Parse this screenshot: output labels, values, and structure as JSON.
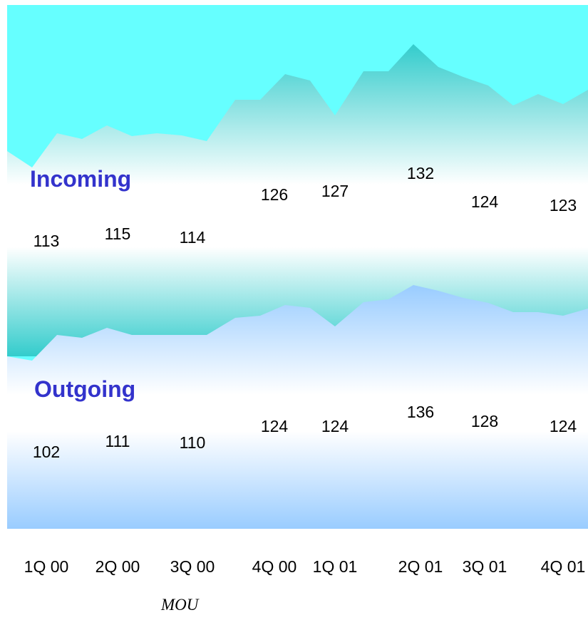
{
  "chart_data": {
    "type": "area",
    "categories": [
      "1Q 00",
      "2Q 00",
      "3Q 00",
      "4Q 00",
      "1Q 01",
      "2Q 01",
      "3Q 01",
      "4Q 01"
    ],
    "series": [
      {
        "name": "Incoming",
        "values": [
          113,
          115,
          114,
          126,
          127,
          132,
          124,
          123
        ]
      },
      {
        "name": "Outgoing",
        "values": [
          102,
          111,
          110,
          124,
          124,
          136,
          128,
          124
        ]
      }
    ],
    "footer_label": "MOU",
    "grid": false,
    "colors": {
      "incoming_top": "#66ffff",
      "incoming_band": "#33cccc",
      "outgoing_band": "#99ccff",
      "series_label": "#3333cc"
    }
  }
}
